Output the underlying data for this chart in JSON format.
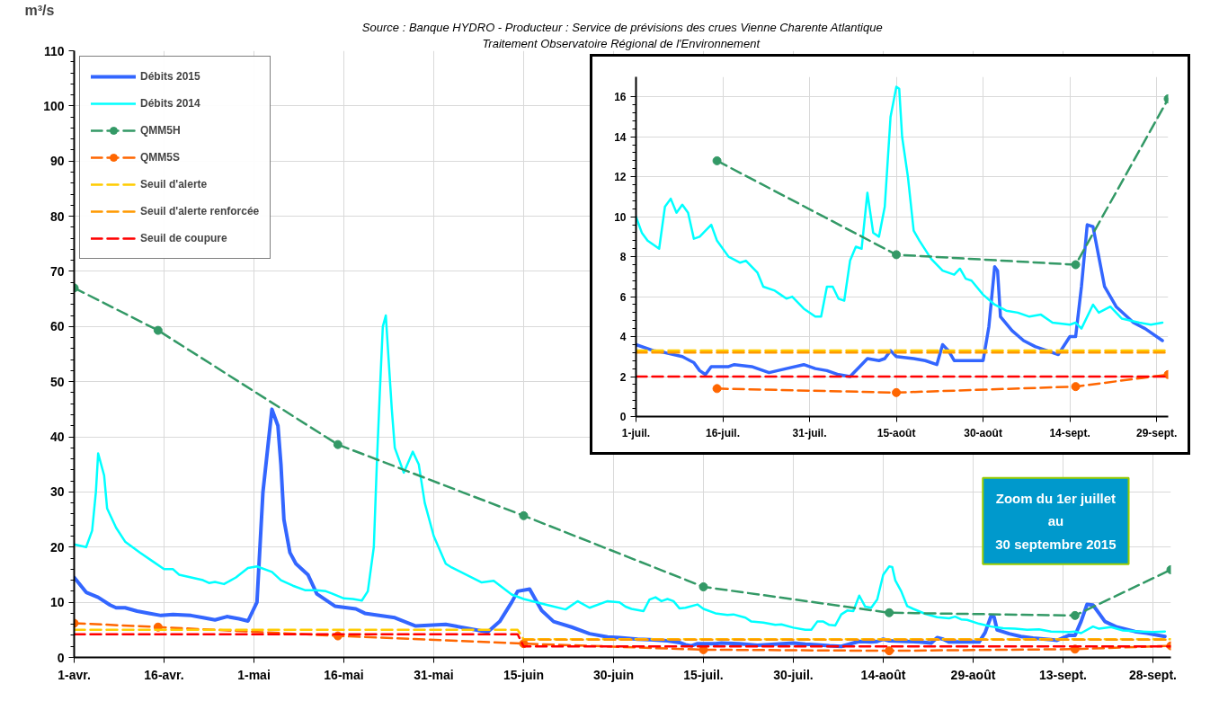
{
  "chart_data": [
    {
      "type": "line",
      "ylabel": "m³/s",
      "annotations": [
        "Source : Banque HYDRO - Producteur : Service de prévisions des crues Vienne Charente Atlantique",
        "Traitement  Observatoire Régional de l'Environnement",
        "Zoom du 1er juillet\nau\n30 septembre 2015"
      ],
      "xlim": [
        "2015-04-01",
        "2015-10-01"
      ],
      "xticks": [
        {
          "value": "2015-04-01",
          "label": "1-avr."
        },
        {
          "value": "2015-04-16",
          "label": "16-avr."
        },
        {
          "value": "2015-05-01",
          "label": "1-mai"
        },
        {
          "value": "2015-05-16",
          "label": "16-mai"
        },
        {
          "value": "2015-05-31",
          "label": "31-mai"
        },
        {
          "value": "2015-06-15",
          "label": "15-juin"
        },
        {
          "value": "2015-06-30",
          "label": "30-juin"
        },
        {
          "value": "2015-07-15",
          "label": "15-juil."
        },
        {
          "value": "2015-07-30",
          "label": "30-juil."
        },
        {
          "value": "2015-08-14",
          "label": "14-août"
        },
        {
          "value": "2015-08-29",
          "label": "29-août"
        },
        {
          "value": "2015-09-13",
          "label": "13-sept."
        },
        {
          "value": "2015-09-28",
          "label": "28-sept."
        }
      ],
      "ylim": [
        0,
        110
      ],
      "yticks": [
        0,
        10,
        20,
        30,
        40,
        50,
        60,
        70,
        80,
        90,
        100,
        110
      ],
      "grid": true,
      "legend": "top left",
      "series": [
        {
          "name": "Débits 2015",
          "color": "#3366ff",
          "line_style": "solid",
          "x": [
            "2015-04-01",
            "2015-04-03",
            "2015-04-05",
            "2015-04-07",
            "2015-04-08",
            "2015-04-09T12:00",
            "2015-04-11T12:00",
            "2015-04-13T12:00",
            "2015-04-15T12:00",
            "2015-04-17T12:00",
            "2015-04-20T12:00",
            "2015-04-22T12:00",
            "2015-04-24T12:00",
            "2015-04-26T12:00",
            "2015-04-28T12:00",
            "2015-04-30",
            "2015-05-01T12:00",
            "2015-05-02T12:00",
            "2015-05-03T12:00",
            "2015-05-04",
            "2015-05-05",
            "2015-05-05T12:00",
            "2015-05-06",
            "2015-05-07",
            "2015-05-08",
            "2015-05-10",
            "2015-05-11T12:00",
            "2015-05-14T12:00",
            "2015-05-18",
            "2015-05-19T12:00",
            "2015-05-24T12:00",
            "2015-05-28",
            "2015-06-02",
            "2015-06-09",
            "2015-06-11",
            "2015-06-13",
            "2015-06-14",
            "2015-06-16",
            "2015-06-18",
            "2015-06-20",
            "2015-06-23",
            "2015-06-26",
            "2015-06-29",
            "2015-07-01",
            "2015-07-04",
            "2015-07-06",
            "2015-07-09",
            "2015-07-11",
            "2015-07-12",
            "2015-07-13",
            "2015-07-14",
            "2015-07-17",
            "2015-07-18",
            "2015-07-21",
            "2015-07-24",
            "2015-07-27",
            "2015-07-30",
            "2015-08-01",
            "2015-08-03",
            "2015-08-05",
            "2015-08-07",
            "2015-08-09",
            "2015-08-10",
            "2015-08-12",
            "2015-08-13",
            "2015-08-14",
            "2015-08-15",
            "2015-08-18",
            "2015-08-20",
            "2015-08-22",
            "2015-08-23",
            "2015-08-24",
            "2015-08-25",
            "2015-08-30",
            "2015-08-31",
            "2015-09-01",
            "2015-09-01T12:00",
            "2015-09-02",
            "2015-09-04",
            "2015-09-06",
            "2015-09-08",
            "2015-09-11",
            "2015-09-12",
            "2015-09-14",
            "2015-09-15",
            "2015-09-16",
            "2015-09-17",
            "2015-09-18",
            "2015-09-19",
            "2015-09-20",
            "2015-09-22",
            "2015-09-25",
            "2015-09-27",
            "2015-09-30"
          ],
          "values": [
            14.5,
            11.8,
            10.9,
            9.5,
            9.0,
            9.0,
            8.4,
            8.0,
            7.6,
            7.8,
            7.6,
            7.2,
            6.8,
            7.4,
            7.0,
            6.6,
            10,
            30,
            40,
            45,
            42,
            35,
            25,
            19,
            17,
            15,
            11.5,
            9.3,
            8.8,
            8,
            7.2,
            5.7,
            6.0,
            4.6,
            6.5,
            10,
            12,
            12.4,
            8.5,
            6.5,
            5.5,
            4.3,
            3.7,
            3.6,
            3.3,
            3.2,
            3.0,
            2.7,
            2.3,
            2.1,
            2.5,
            2.5,
            2.6,
            2.5,
            2.2,
            2.4,
            2.6,
            2.4,
            2.3,
            2.1,
            2.0,
            2.6,
            2.9,
            2.8,
            2.9,
            3.3,
            3.0,
            2.9,
            2.8,
            2.6,
            3.6,
            3.3,
            2.8,
            2.8,
            4.5,
            7.5,
            7.3,
            5.0,
            4.3,
            3.8,
            3.5,
            3.2,
            3.1,
            4.0,
            4.0,
            6.5,
            9.6,
            9.5,
            8.0,
            6.5,
            5.5,
            4.7,
            4.4,
            3.8
          ]
        },
        {
          "name": "Débits 2014",
          "color": "#00ffff",
          "line_style": "solid",
          "x": [
            "2015-04-01",
            "2015-04-03",
            "2015-04-04",
            "2015-04-04T15:00",
            "2015-04-05",
            "2015-04-06",
            "2015-04-06T12:00",
            "2015-04-08",
            "2015-04-09T12:00",
            "2015-04-12",
            "2015-04-14",
            "2015-04-16",
            "2015-04-17T12:00",
            "2015-04-18T12:00",
            "2015-04-20T12:00",
            "2015-04-22T12:00",
            "2015-04-23T12:00",
            "2015-04-24T12:00",
            "2015-04-26",
            "2015-04-28",
            "2015-04-30",
            "2015-05-01T12:00",
            "2015-05-04",
            "2015-05-05T12:00",
            "2015-05-07T12:00",
            "2015-05-09T12:00",
            "2015-05-11T12:00",
            "2015-05-13",
            "2015-05-14",
            "2015-05-16",
            "2015-05-17T12:00",
            "2015-05-19",
            "2015-05-20",
            "2015-05-21",
            "2015-05-21T12:00",
            "2015-05-22",
            "2015-05-22T12:00",
            "2015-05-23",
            "2015-05-24",
            "2015-05-24T12:00",
            "2015-05-26",
            "2015-05-27T12:00",
            "2015-05-28T12:00",
            "2015-05-29T12:00",
            "2015-05-31",
            "2015-06-02",
            "2015-06-03",
            "2015-06-08",
            "2015-06-10",
            "2015-06-13",
            "2015-06-15",
            "2015-06-19",
            "2015-06-22",
            "2015-06-24",
            "2015-06-26",
            "2015-06-29",
            "2015-07-01",
            "2015-07-02",
            "2015-07-03",
            "2015-07-04",
            "2015-07-05",
            "2015-07-06",
            "2015-07-07",
            "2015-07-08",
            "2015-07-09",
            "2015-07-10",
            "2015-07-11",
            "2015-07-12",
            "2015-07-14",
            "2015-07-15",
            "2015-07-17",
            "2015-07-19",
            "2015-07-20",
            "2015-07-22",
            "2015-07-23",
            "2015-07-25",
            "2015-07-26",
            "2015-07-27",
            "2015-07-28",
            "2015-07-30",
            "2015-08-01",
            "2015-08-02",
            "2015-08-03",
            "2015-08-04",
            "2015-08-05",
            "2015-08-06",
            "2015-08-07",
            "2015-08-08",
            "2015-08-09",
            "2015-08-10",
            "2015-08-11",
            "2015-08-12",
            "2015-08-13",
            "2015-08-14",
            "2015-08-15",
            "2015-08-15T12:00",
            "2015-08-16",
            "2015-08-17",
            "2015-08-18",
            "2015-08-19",
            "2015-08-21",
            "2015-08-23",
            "2015-08-25",
            "2015-08-26",
            "2015-08-27",
            "2015-08-28",
            "2015-08-30",
            "2015-09-01",
            "2015-09-03",
            "2015-09-05",
            "2015-09-07",
            "2015-09-09",
            "2015-09-11",
            "2015-09-14",
            "2015-09-15",
            "2015-09-16",
            "2015-09-18",
            "2015-09-19",
            "2015-09-21",
            "2015-09-23",
            "2015-09-26",
            "2015-09-28",
            "2015-09-30"
          ],
          "values": [
            20.5,
            20,
            23,
            30,
            37,
            33,
            27,
            23.5,
            21,
            19,
            17.5,
            16,
            16,
            15,
            14.5,
            14,
            13.5,
            13.7,
            13.3,
            14.5,
            16.2,
            16.5,
            15.5,
            14,
            13,
            12.2,
            12.2,
            12,
            11.6,
            10.7,
            10.6,
            10.3,
            12,
            20,
            35,
            48,
            60,
            62,
            45,
            38,
            33.5,
            37.3,
            35,
            28,
            22,
            17,
            16.3,
            13.6,
            13.9,
            11.4,
            10.6,
            9.5,
            8.7,
            10.2,
            9.0,
            10.2,
            10,
            9.2,
            8.8,
            8.6,
            8.4,
            10.5,
            10.9,
            10.2,
            10.6,
            10.2,
            8.9,
            9.0,
            9.6,
            8.8,
            8.0,
            7.7,
            7.8,
            7.2,
            6.5,
            6.3,
            6.1,
            5.9,
            6.0,
            5.4,
            5.0,
            5.0,
            6.5,
            6.5,
            5.9,
            5.8,
            7.8,
            8.5,
            8.4,
            11.2,
            9.2,
            9.0,
            10.5,
            15,
            16.5,
            16.4,
            14,
            12,
            9.3,
            8.8,
            7.9,
            7.3,
            7.1,
            7.4,
            6.9,
            6.8,
            6.1,
            5.6,
            5.3,
            5.2,
            5.0,
            5.1,
            4.7,
            4.6,
            4.7,
            4.4,
            5.6,
            5.2,
            5.5,
            4.9,
            4.7,
            4.6,
            4.7
          ]
        },
        {
          "name": "QMM5H",
          "color": "#339966",
          "line_style": "dashed",
          "marker": "circle",
          "x": [
            "2015-04-01",
            "2015-04-15",
            "2015-05-15",
            "2015-06-15",
            "2015-07-15",
            "2015-08-15",
            "2015-09-15",
            "2015-10-01"
          ],
          "values": [
            67,
            59.3,
            38.6,
            25.7,
            12.8,
            8.1,
            7.6,
            15.9
          ]
        },
        {
          "name": "QMM5S",
          "color": "#ff6600",
          "line_style": "dashed",
          "marker": "circle",
          "x": [
            "2015-04-01",
            "2015-04-15",
            "2015-05-15",
            "2015-06-15",
            "2015-07-15",
            "2015-08-15",
            "2015-09-15",
            "2015-10-01"
          ],
          "values": [
            6.2,
            5.5,
            3.9,
            2.5,
            1.4,
            1.2,
            1.5,
            2.1
          ]
        },
        {
          "name": "Seuil d'alerte",
          "color": "#ffcc00",
          "line_style": "dashed",
          "x": [
            "2015-04-01",
            "2015-06-14",
            "2015-06-15",
            "2015-10-01"
          ],
          "values": [
            5.0,
            5.0,
            3.3,
            3.3
          ]
        },
        {
          "name": "Seuil d'alerte renforcée",
          "color": "#ff9900",
          "line_style": "dashed",
          "x": [
            "2015-06-15",
            "2015-10-01"
          ],
          "values": [
            3.2,
            3.2
          ]
        },
        {
          "name": "Seuil de coupure",
          "color": "#ff0000",
          "line_style": "dashed",
          "x": [
            "2015-04-01",
            "2015-06-14",
            "2015-06-15",
            "2015-10-01"
          ],
          "values": [
            4.2,
            4.2,
            2.0,
            2.0
          ]
        }
      ]
    },
    {
      "type": "line",
      "xlim": [
        "2015-07-01",
        "2015-10-01"
      ],
      "xticks": [
        {
          "value": "2015-07-01",
          "label": "1-juil."
        },
        {
          "value": "2015-07-16",
          "label": "16-juil."
        },
        {
          "value": "2015-07-31",
          "label": "31-juil."
        },
        {
          "value": "2015-08-15",
          "label": "15-août"
        },
        {
          "value": "2015-08-30",
          "label": "30-août"
        },
        {
          "value": "2015-09-14",
          "label": "14-sept."
        },
        {
          "value": "2015-09-29",
          "label": "29-sept."
        }
      ],
      "ylim": [
        0,
        17
      ],
      "yticks": [
        0,
        2,
        4,
        6,
        8,
        10,
        12,
        14,
        16
      ],
      "grid": true,
      "series": [
        {
          "color": "#3366ff",
          "line_style": "solid",
          "x": [
            "2015-07-01",
            "2015-07-04",
            "2015-07-06",
            "2015-07-09",
            "2015-07-11",
            "2015-07-12",
            "2015-07-13",
            "2015-07-14",
            "2015-07-17",
            "2015-07-18",
            "2015-07-21",
            "2015-07-24",
            "2015-07-27",
            "2015-07-30",
            "2015-08-01",
            "2015-08-03",
            "2015-08-05",
            "2015-08-07",
            "2015-08-09",
            "2015-08-10",
            "2015-08-12",
            "2015-08-13",
            "2015-08-14",
            "2015-08-15",
            "2015-08-18",
            "2015-08-20",
            "2015-08-22",
            "2015-08-23",
            "2015-08-24",
            "2015-08-25",
            "2015-08-30",
            "2015-08-31",
            "2015-09-01",
            "2015-09-01T12:00",
            "2015-09-02",
            "2015-09-04",
            "2015-09-06",
            "2015-09-08",
            "2015-09-11",
            "2015-09-12",
            "2015-09-14",
            "2015-09-15",
            "2015-09-16",
            "2015-09-17",
            "2015-09-18",
            "2015-09-19",
            "2015-09-20",
            "2015-09-22",
            "2015-09-25",
            "2015-09-27",
            "2015-09-30"
          ],
          "values": [
            3.6,
            3.3,
            3.2,
            3.0,
            2.7,
            2.3,
            2.1,
            2.5,
            2.5,
            2.6,
            2.5,
            2.2,
            2.4,
            2.6,
            2.4,
            2.3,
            2.1,
            2.0,
            2.6,
            2.9,
            2.8,
            2.9,
            3.3,
            3.0,
            2.9,
            2.8,
            2.6,
            3.6,
            3.3,
            2.8,
            2.8,
            4.5,
            7.5,
            7.3,
            5.0,
            4.3,
            3.8,
            3.5,
            3.2,
            3.1,
            4.0,
            4.0,
            6.5,
            9.6,
            9.5,
            8.0,
            6.5,
            5.5,
            4.7,
            4.4,
            3.8
          ]
        },
        {
          "color": "#00ffff",
          "line_style": "solid",
          "x": [
            "2015-07-01",
            "2015-07-02",
            "2015-07-03",
            "2015-07-04",
            "2015-07-05",
            "2015-07-06",
            "2015-07-07",
            "2015-07-08",
            "2015-07-09",
            "2015-07-10",
            "2015-07-11",
            "2015-07-12",
            "2015-07-14",
            "2015-07-15",
            "2015-07-17",
            "2015-07-19",
            "2015-07-20",
            "2015-07-22",
            "2015-07-23",
            "2015-07-25",
            "2015-07-26",
            "2015-07-27",
            "2015-07-28",
            "2015-07-30",
            "2015-08-01",
            "2015-08-02",
            "2015-08-03",
            "2015-08-04",
            "2015-08-05",
            "2015-08-06",
            "2015-08-07",
            "2015-08-08",
            "2015-08-09",
            "2015-08-10",
            "2015-08-11",
            "2015-08-12",
            "2015-08-13",
            "2015-08-14",
            "2015-08-15",
            "2015-08-15T12:00",
            "2015-08-16",
            "2015-08-17",
            "2015-08-18",
            "2015-08-19",
            "2015-08-21",
            "2015-08-23",
            "2015-08-25",
            "2015-08-26",
            "2015-08-27",
            "2015-08-28",
            "2015-08-30",
            "2015-09-01",
            "2015-09-03",
            "2015-09-05",
            "2015-09-07",
            "2015-09-09",
            "2015-09-11",
            "2015-09-14",
            "2015-09-15",
            "2015-09-16",
            "2015-09-18",
            "2015-09-19",
            "2015-09-21",
            "2015-09-23",
            "2015-09-26",
            "2015-09-28",
            "2015-09-30"
          ],
          "values": [
            10,
            9.2,
            8.8,
            8.6,
            8.4,
            10.5,
            10.9,
            10.2,
            10.6,
            10.2,
            8.9,
            9.0,
            9.6,
            8.8,
            8.0,
            7.7,
            7.8,
            7.2,
            6.5,
            6.3,
            6.1,
            5.9,
            6.0,
            5.4,
            5.0,
            5.0,
            6.5,
            6.5,
            5.9,
            5.8,
            7.8,
            8.5,
            8.4,
            11.2,
            9.2,
            9.0,
            10.5,
            15,
            16.5,
            16.4,
            14,
            12,
            9.3,
            8.8,
            7.9,
            7.3,
            7.1,
            7.4,
            6.9,
            6.8,
            6.1,
            5.6,
            5.3,
            5.2,
            5.0,
            5.1,
            4.7,
            4.6,
            4.7,
            4.4,
            5.6,
            5.2,
            5.5,
            4.9,
            4.7,
            4.6,
            4.7
          ]
        },
        {
          "color": "#339966",
          "line_style": "dashed",
          "marker": "circle",
          "x": [
            "2015-07-15",
            "2015-08-15",
            "2015-09-15",
            "2015-10-01"
          ],
          "values": [
            12.8,
            8.1,
            7.6,
            15.9
          ]
        },
        {
          "color": "#ff6600",
          "line_style": "dashed",
          "marker": "circle",
          "x": [
            "2015-07-15",
            "2015-08-15",
            "2015-09-15",
            "2015-10-01"
          ],
          "values": [
            1.4,
            1.2,
            1.5,
            2.1
          ]
        },
        {
          "color": "#ffcc00",
          "line_style": "dashed",
          "x": [
            "2015-07-01",
            "2015-10-01"
          ],
          "values": [
            3.3,
            3.3
          ]
        },
        {
          "color": "#ff9900",
          "line_style": "dashed",
          "x": [
            "2015-07-01",
            "2015-10-01"
          ],
          "values": [
            3.2,
            3.2
          ]
        },
        {
          "color": "#ff0000",
          "line_style": "dashed",
          "x": [
            "2015-07-01",
            "2015-10-01"
          ],
          "values": [
            2.0,
            2.0
          ]
        }
      ]
    }
  ]
}
